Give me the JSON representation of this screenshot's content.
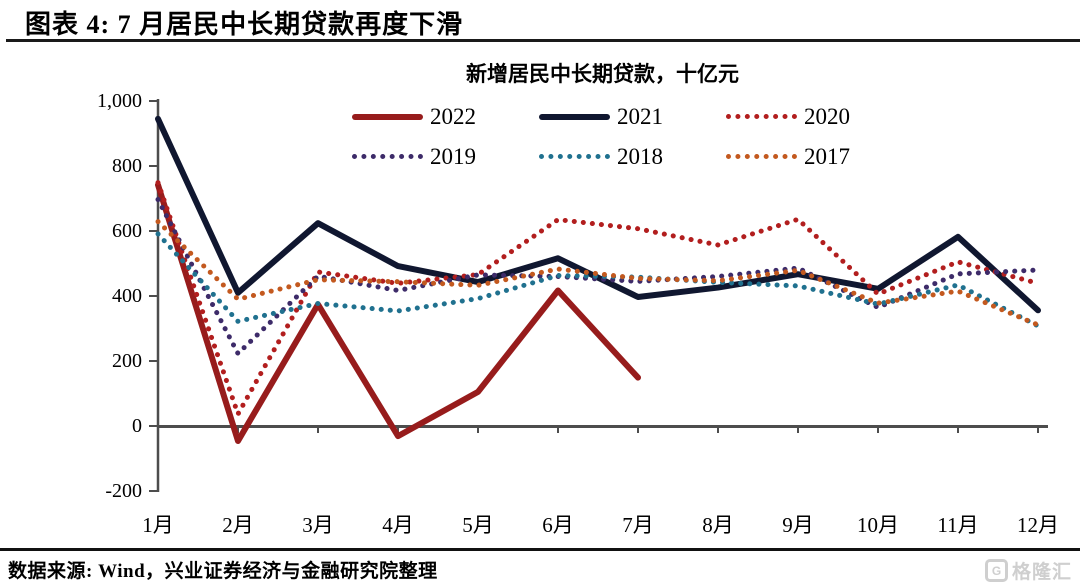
{
  "header": {
    "title": "图表 4: 7 月居民中长期贷款再度下滑"
  },
  "footer": {
    "source": "数据来源: Wind，兴业证券经济与金融研究院整理",
    "logo_letter": "G",
    "logo_text": "格隆汇"
  },
  "chart_data": {
    "type": "line",
    "title": "新增居民中长期贷款，十亿元",
    "categories": [
      "1月",
      "2月",
      "3月",
      "4月",
      "5月",
      "6月",
      "7月",
      "8月",
      "9月",
      "10月",
      "11月",
      "12月"
    ],
    "ylabel": "",
    "xlabel": "",
    "ylim": [
      -200,
      1000
    ],
    "grid": false,
    "legend_position": "top",
    "axis_color": "#4d4d4d",
    "y_ticks": [
      {
        "label": "1,000",
        "value": 1000
      },
      {
        "label": "800",
        "value": 800
      },
      {
        "label": "600",
        "value": 600
      },
      {
        "label": "400",
        "value": 400
      },
      {
        "label": "200",
        "value": 200
      },
      {
        "label": "0",
        "value": 0
      },
      {
        "label": "-200",
        "value": -200
      }
    ],
    "series": [
      {
        "name": "2022",
        "style": "solid",
        "color": "#971c1c",
        "values": [
          742,
          -46,
          374,
          -31,
          105,
          417,
          149,
          null,
          null,
          null,
          null,
          null
        ]
      },
      {
        "name": "2021",
        "style": "solid",
        "color": "#101730",
        "values": [
          945,
          410,
          624,
          492,
          443,
          516,
          397,
          426,
          467,
          422,
          582,
          356
        ]
      },
      {
        "name": "2020",
        "style": "dotted",
        "color": "#b21e1e",
        "values": [
          749,
          37,
          474,
          439,
          466,
          635,
          607,
          557,
          636,
          406,
          505,
          439
        ]
      },
      {
        "name": "2019",
        "style": "dotted",
        "color": "#3d2b69",
        "values": [
          697,
          223,
          461,
          417,
          465,
          460,
          445,
          460,
          486,
          365,
          468,
          480
        ]
      },
      {
        "name": "2018",
        "style": "dotted",
        "color": "#20718f",
        "values": [
          591,
          322,
          377,
          354,
          392,
          463,
          458,
          442,
          431,
          375,
          434,
          308
        ]
      },
      {
        "name": "2017",
        "style": "dotted",
        "color": "#c3591f",
        "values": [
          629,
          390,
          450,
          444,
          433,
          483,
          454,
          447,
          479,
          378,
          415,
          311
        ]
      }
    ]
  }
}
